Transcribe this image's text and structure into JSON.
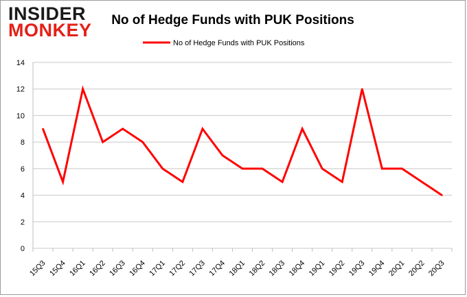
{
  "logo": {
    "line1": "INSIDER",
    "line2": "MONKEY",
    "colors": {
      "line1": "#1a1a1a",
      "line2": "#e32018"
    }
  },
  "chart_data": {
    "type": "line",
    "title": "No of Hedge Funds with PUK Positions",
    "xlabel": "",
    "ylabel": "",
    "categories": [
      "15Q3",
      "15Q4",
      "16Q1",
      "16Q2",
      "16Q3",
      "16Q4",
      "17Q1",
      "17Q2",
      "17Q3",
      "17Q4",
      "18Q1",
      "18Q2",
      "18Q3",
      "18Q4",
      "19Q1",
      "19Q2",
      "19Q3",
      "19Q4",
      "20Q1",
      "20Q2",
      "20Q3"
    ],
    "series": [
      {
        "name": "No of Hedge Funds with PUK Positions",
        "values": [
          9,
          5,
          12,
          8,
          9,
          8,
          6,
          5,
          9,
          7,
          6,
          6,
          5,
          9,
          6,
          5,
          12,
          6,
          6,
          5,
          4
        ],
        "color": "#ff0000"
      }
    ],
    "ylim": [
      0,
      14
    ],
    "yticks": [
      0,
      2,
      4,
      6,
      8,
      10,
      12,
      14
    ],
    "grid": true,
    "legend_position": "top-center"
  }
}
